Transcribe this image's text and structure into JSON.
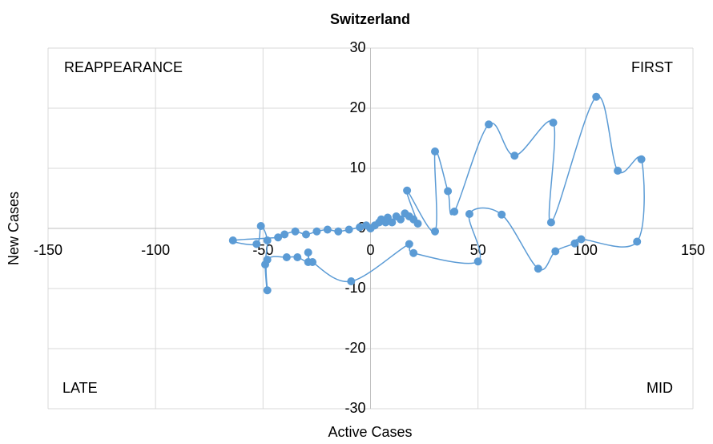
{
  "chart_data": {
    "type": "scatter",
    "title": "Switzerland",
    "x_label": "Active Cases",
    "y_label": "New Cases",
    "annotations": [
      "REAPPEARANCE",
      "FIRST",
      "LATE",
      "MID"
    ],
    "color": "#5b9bd5",
    "smooth": true,
    "grid": true,
    "xlim": [
      -150,
      150
    ],
    "xticks": [
      -150,
      -100,
      -50,
      0,
      50,
      100,
      150
    ],
    "ylim": [
      -30,
      30
    ],
    "yticks": [
      -30,
      -20,
      -10,
      0,
      10,
      20,
      30
    ],
    "x": [
      0,
      2,
      4,
      5,
      7,
      8,
      10,
      12,
      14,
      16,
      18,
      20,
      22,
      17,
      30,
      30,
      36,
      39,
      55,
      67,
      85,
      84,
      105,
      115,
      126,
      124,
      98,
      95,
      86,
      78,
      61,
      46,
      50,
      20,
      18,
      -9,
      -27,
      -29,
      -29,
      -34,
      -39,
      -48,
      -48,
      -49,
      -48,
      -51,
      -53,
      -64,
      -43,
      -40,
      -35,
      -30,
      -25,
      -20,
      -15,
      -10,
      -5,
      -2,
      0
    ],
    "values": [
      0,
      0.5,
      1,
      1.5,
      1,
      1.8,
      1,
      2,
      1.5,
      2.5,
      2,
      1.5,
      0.8,
      6.3,
      -0.5,
      12.8,
      6.2,
      2.8,
      17.3,
      12.1,
      17.6,
      1,
      21.9,
      9.6,
      11.5,
      -2.2,
      -1.8,
      -2.5,
      -3.8,
      -6.7,
      2.3,
      2.4,
      -5.5,
      -4.1,
      -2.6,
      -8.8,
      -5.6,
      -4,
      -5.6,
      -4.8,
      -4.8,
      -5.2,
      -10.3,
      -6,
      -2,
      0.4,
      -2.6,
      -2,
      -1.5,
      -1,
      -0.5,
      -1,
      -0.5,
      -0.2,
      -0.5,
      -0.2,
      0.2,
      0.5,
      0
    ]
  }
}
